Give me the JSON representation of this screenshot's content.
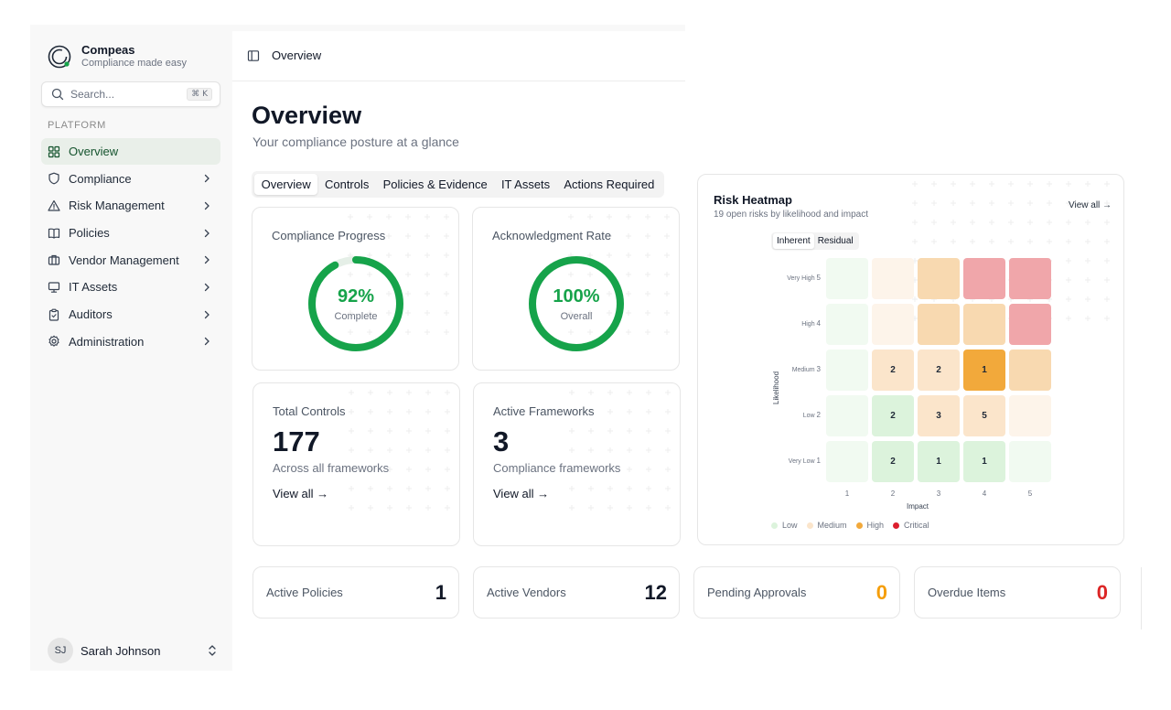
{
  "brand": {
    "name": "Compeas",
    "tagline": "Compliance made easy"
  },
  "search": {
    "placeholder": "Search...",
    "shortcut": "⌘ K"
  },
  "sidebar": {
    "section": "PLATFORM",
    "items": [
      {
        "label": "Overview",
        "icon": "layout-grid-icon",
        "active": true
      },
      {
        "label": "Compliance",
        "icon": "shield-icon"
      },
      {
        "label": "Risk Management",
        "icon": "warning-triangle-icon"
      },
      {
        "label": "Policies",
        "icon": "book-icon"
      },
      {
        "label": "Vendor Management",
        "icon": "briefcase-icon"
      },
      {
        "label": "IT Assets",
        "icon": "monitor-icon"
      },
      {
        "label": "Auditors",
        "icon": "clipboard-icon"
      },
      {
        "label": "Administration",
        "icon": "gear-icon"
      }
    ]
  },
  "user": {
    "initials": "SJ",
    "name": "Sarah Johnson"
  },
  "header": {
    "title": "Overview"
  },
  "page": {
    "title": "Overview",
    "subtitle": "Your compliance posture at a glance"
  },
  "tabs": [
    "Overview",
    "Controls",
    "Policies & Evidence",
    "IT Assets",
    "Actions Required"
  ],
  "cards": {
    "compliance_progress": {
      "title": "Compliance Progress",
      "value": "92%",
      "fraction": 0.92,
      "sub": "Complete"
    },
    "acknowledgment_rate": {
      "title": "Acknowledgment Rate",
      "value": "100%",
      "fraction": 1.0,
      "sub": "Overall"
    },
    "total_controls": {
      "title": "Total Controls",
      "value": "177",
      "desc": "Across all frameworks",
      "link": "View all →"
    },
    "active_frameworks": {
      "title": "Active Frameworks",
      "value": "3",
      "desc": "Compliance frameworks",
      "link": "View all →"
    }
  },
  "stats": [
    {
      "label": "Active Policies",
      "value": "1",
      "color": "#111827"
    },
    {
      "label": "Active Vendors",
      "value": "12",
      "color": "#111827"
    },
    {
      "label": "Pending Approvals",
      "value": "0",
      "color": "#f59e0b"
    },
    {
      "label": "Overdue Items",
      "value": "0",
      "color": "#dc2626"
    }
  ],
  "heatmap": {
    "title": "Risk Heatmap",
    "subtitle": "19 open risks by likelihood and impact",
    "view_all": "View all →",
    "toggle": [
      "Inherent",
      "Residual"
    ],
    "y_axis_title": "Likelihood",
    "x_axis_title": "Impact",
    "likelihood_labels": [
      {
        "name": "Very High",
        "num": "5"
      },
      {
        "name": "High",
        "num": "4"
      },
      {
        "name": "Medium",
        "num": "3"
      },
      {
        "name": "Low",
        "num": "2"
      },
      {
        "name": "Very Low",
        "num": "1"
      }
    ],
    "impact_labels": [
      "1",
      "2",
      "3",
      "4",
      "5"
    ],
    "rows": [
      [
        "",
        "",
        "",
        "",
        ""
      ],
      [
        "",
        "",
        "",
        "",
        ""
      ],
      [
        "",
        "2",
        "2",
        "1",
        ""
      ],
      [
        "",
        "2",
        "3",
        "5",
        ""
      ],
      [
        "",
        "2",
        "1",
        "1",
        ""
      ]
    ],
    "cell_colors": [
      [
        "#f1faf1",
        "#fdf4ea",
        "#f8d9b0",
        "#f0a6aa",
        "#f0a6aa"
      ],
      [
        "#f1faf1",
        "#fdf4ea",
        "#f8d9b0",
        "#f8d9b0",
        "#f0a6aa"
      ],
      [
        "#f1faf1",
        "#fbe5cb",
        "#fbe5cb",
        "#f2a93b",
        "#f8d9b0"
      ],
      [
        "#f1faf1",
        "#dcf3dc",
        "#fbe5cb",
        "#fbe5cb",
        "#fdf4ea"
      ],
      [
        "#f1faf1",
        "#dcf3dc",
        "#dcf3dc",
        "#dcf3dc",
        "#f1faf1"
      ]
    ],
    "legend": [
      {
        "label": "Low",
        "color": "#dcf3dc"
      },
      {
        "label": "Medium",
        "color": "#fbe5cb"
      },
      {
        "label": "High",
        "color": "#f2a93b"
      },
      {
        "label": "Critical",
        "color": "#dc1f2e"
      }
    ]
  },
  "colors": {
    "accent": "#16a34a",
    "active_nav_bg": "#e9efe9"
  }
}
